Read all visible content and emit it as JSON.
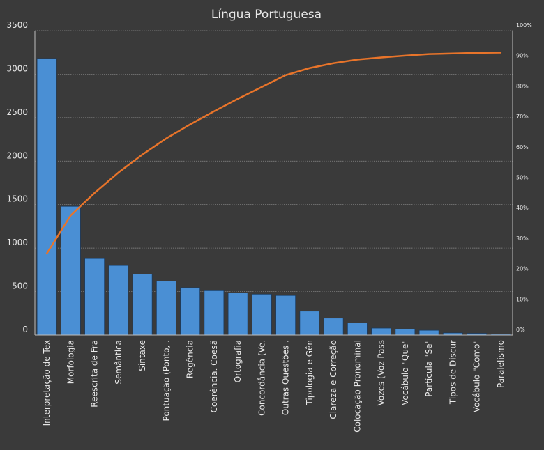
{
  "chart_data": {
    "type": "bar",
    "title": "Língua Portuguesa",
    "categories": [
      "Interpretação de Tex",
      "Morfologia",
      "Reescrita de Fra",
      "Semântica",
      "Sintaxe",
      "Pontuação (Ponto, .",
      "Regência",
      "Coerência. Coesã",
      "Ortografia",
      "Concordância (Ve.",
      "Outras Questões .",
      "Tipologia e Gên",
      "Clareza e Correção",
      "Colocação Pronominal",
      "Vozes (Voz Pass",
      "Vocábulo \"Que\"",
      "Partícula \"Se\"",
      "Tipos de Discur",
      "Vocábulo \"Como\"",
      "Paralelismo"
    ],
    "series": [
      {
        "type": "bar",
        "color": "#4a8fd4",
        "values": [
          3180,
          1480,
          880,
          800,
          700,
          620,
          545,
          510,
          485,
          470,
          455,
          275,
          195,
          140,
          80,
          70,
          55,
          25,
          20,
          10
        ]
      },
      {
        "type": "line",
        "axis": "secondary",
        "color": "#e8742a",
        "values": [
          26.8,
          39.3,
          46.7,
          53.4,
          59.3,
          64.6,
          69.2,
          73.5,
          77.6,
          81.5,
          85.4,
          87.7,
          89.3,
          90.5,
          91.2,
          91.8,
          92.3,
          92.5,
          92.7,
          92.8
        ]
      }
    ],
    "ylim": [
      0,
      3500
    ],
    "yticks": [
      0,
      500,
      1000,
      1500,
      2000,
      2500,
      3000,
      3500
    ],
    "y2lim": [
      0,
      100
    ],
    "y2ticks": [
      "0%",
      "10%",
      "20%",
      "30%",
      "40%",
      "50%",
      "60%",
      "70%",
      "80%",
      "90%",
      "100%"
    ],
    "grid": true,
    "legend": "none"
  }
}
